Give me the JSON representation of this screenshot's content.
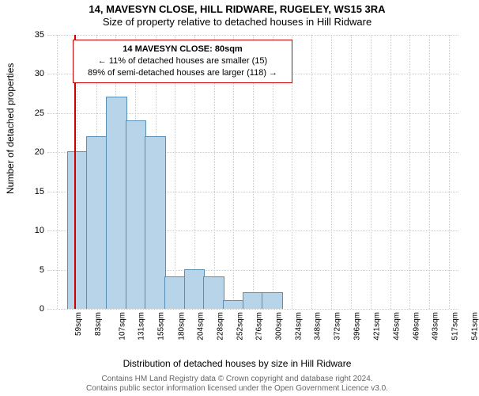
{
  "title_line1": "14, MAVESYN CLOSE, HILL RIDWARE, RUGELEY, WS15 3RA",
  "title_line2": "Size of property relative to detached houses in Hill Ridware",
  "ylabel": "Number of detached properties",
  "xlabel": "Distribution of detached houses by size in Hill Ridware",
  "footer1": "Contains HM Land Registry data © Crown copyright and database right 2024.",
  "footer2": "Contains public sector information licensed under the Open Government Licence v3.0.",
  "annotation": {
    "line1": "14 MAVESYN CLOSE: 80sqm",
    "line2": "← 11% of detached houses are smaller (15)",
    "line3": "89% of semi-detached houses are larger (118) →",
    "border_color": "#cc0000"
  },
  "chart": {
    "type": "histogram",
    "background_color": "#ffffff",
    "grid_color": "#cccccc",
    "bar_fill": "#b8d4e8",
    "bar_stroke": "#5a8fb5",
    "reference_line_color": "#cc0000",
    "reference_line_x": 80,
    "ylim": [
      0,
      35
    ],
    "ytick_step": 5,
    "yticks": [
      0,
      5,
      10,
      15,
      20,
      25,
      30,
      35
    ],
    "xlim": [
      47,
      553
    ],
    "xticks": [
      59,
      83,
      107,
      131,
      155,
      180,
      204,
      228,
      252,
      276,
      300,
      324,
      348,
      372,
      396,
      421,
      445,
      469,
      493,
      517,
      541
    ],
    "xtick_labels": [
      "59sqm",
      "83sqm",
      "107sqm",
      "131sqm",
      "155sqm",
      "180sqm",
      "204sqm",
      "228sqm",
      "252sqm",
      "276sqm",
      "300sqm",
      "324sqm",
      "348sqm",
      "372sqm",
      "396sqm",
      "421sqm",
      "445sqm",
      "469sqm",
      "493sqm",
      "517sqm",
      "541sqm"
    ],
    "bin_width": 24,
    "bins": [
      {
        "x": 47,
        "count": 0
      },
      {
        "x": 71,
        "count": 20
      },
      {
        "x": 95,
        "count": 22
      },
      {
        "x": 119,
        "count": 27
      },
      {
        "x": 143,
        "count": 24
      },
      {
        "x": 167,
        "count": 22
      },
      {
        "x": 191,
        "count": 4
      },
      {
        "x": 215,
        "count": 5
      },
      {
        "x": 239,
        "count": 4
      },
      {
        "x": 263,
        "count": 1
      },
      {
        "x": 287,
        "count": 2
      },
      {
        "x": 311,
        "count": 2
      }
    ]
  }
}
